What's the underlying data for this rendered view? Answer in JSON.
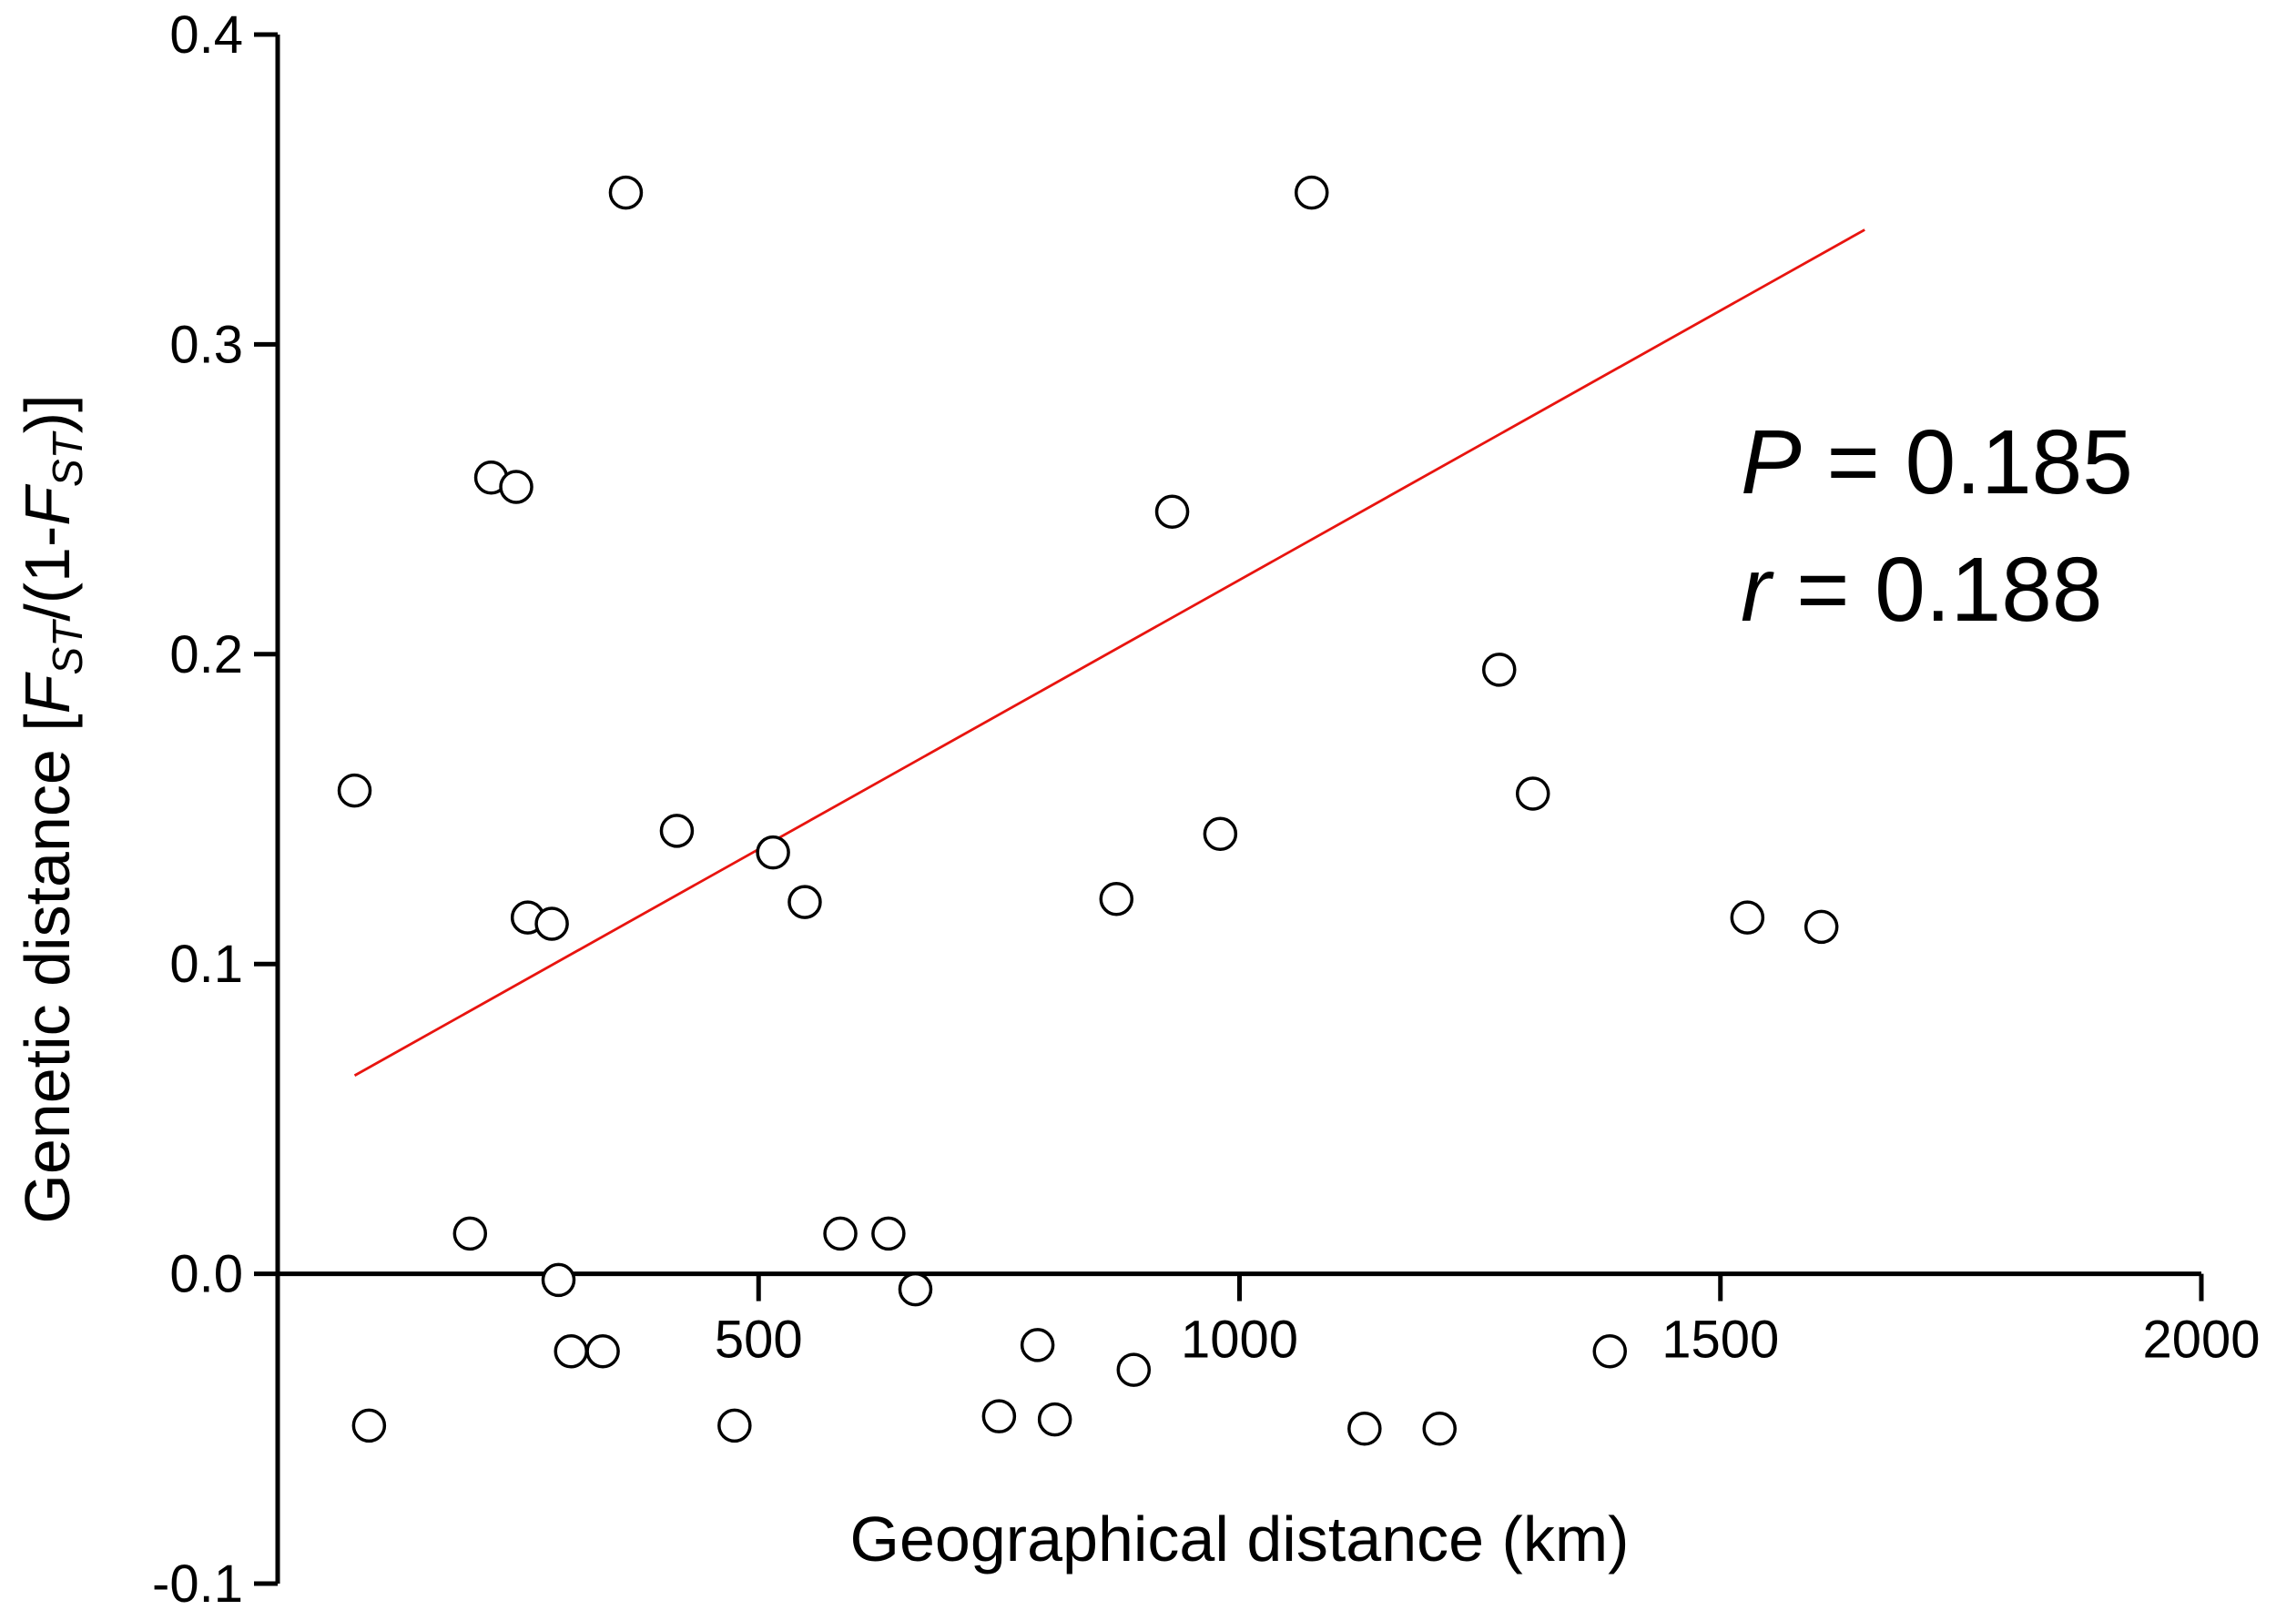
{
  "chart_data": {
    "type": "scatter",
    "xlabel": "Geographical distance (km)",
    "ylabel_parts": [
      "Genetic distance [",
      "F",
      "ST",
      "/(1-",
      "F",
      "ST",
      ")]"
    ],
    "x_ticks": [
      500,
      1000,
      1500,
      2000
    ],
    "y_ticks": [
      "-0.1",
      "0.0",
      "0.1",
      "0.2",
      "0.3",
      "0.4"
    ],
    "xlim": [
      0,
      2000
    ],
    "ylim": [
      -0.1,
      0.4
    ],
    "grid": false,
    "points": [
      {
        "x": 80,
        "y": 0.156
      },
      {
        "x": 95,
        "y": -0.049
      },
      {
        "x": 200,
        "y": 0.013
      },
      {
        "x": 222,
        "y": 0.257
      },
      {
        "x": 248,
        "y": 0.254
      },
      {
        "x": 260,
        "y": 0.115
      },
      {
        "x": 285,
        "y": 0.113
      },
      {
        "x": 292,
        "y": -0.002
      },
      {
        "x": 305,
        "y": -0.025
      },
      {
        "x": 338,
        "y": -0.025
      },
      {
        "x": 362,
        "y": 0.349
      },
      {
        "x": 415,
        "y": 0.143
      },
      {
        "x": 475,
        "y": -0.049
      },
      {
        "x": 515,
        "y": 0.136
      },
      {
        "x": 548,
        "y": 0.12
      },
      {
        "x": 585,
        "y": 0.013
      },
      {
        "x": 635,
        "y": 0.013
      },
      {
        "x": 663,
        "y": -0.005
      },
      {
        "x": 750,
        "y": -0.046
      },
      {
        "x": 790,
        "y": -0.023
      },
      {
        "x": 808,
        "y": -0.047
      },
      {
        "x": 872,
        "y": 0.121
      },
      {
        "x": 890,
        "y": -0.031
      },
      {
        "x": 930,
        "y": 0.246
      },
      {
        "x": 980,
        "y": 0.142
      },
      {
        "x": 1075,
        "y": 0.349
      },
      {
        "x": 1130,
        "y": -0.05
      },
      {
        "x": 1208,
        "y": -0.05
      },
      {
        "x": 1270,
        "y": 0.195
      },
      {
        "x": 1305,
        "y": 0.155
      },
      {
        "x": 1385,
        "y": -0.025
      },
      {
        "x": 1528,
        "y": 0.115
      },
      {
        "x": 1605,
        "y": 0.112
      }
    ],
    "regression": {
      "x": [
        80,
        1650
      ],
      "y": [
        0.064,
        0.337
      ]
    },
    "annotations": {
      "p_symbol": "P",
      "p_text": " = 0.185",
      "r_symbol": "r",
      "r_text": " = 0.188"
    },
    "colors": {
      "regression_line": "#e8140f",
      "markers": "#000000"
    }
  }
}
